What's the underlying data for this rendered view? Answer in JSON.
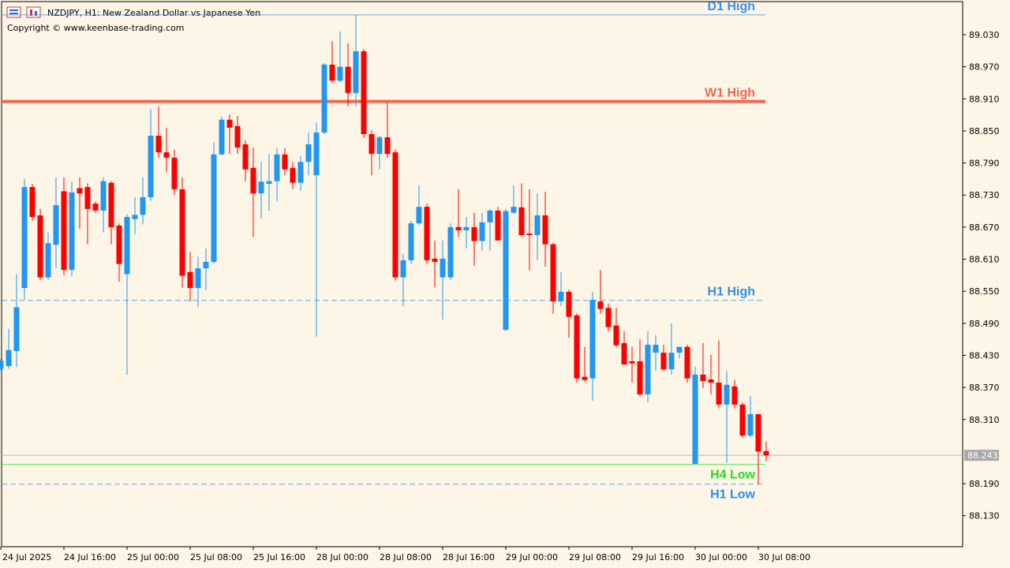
{
  "chart_data": {
    "type": "candlestick",
    "title": "NZDJPY, H1:  New Zealand Dollar vs Japanese Yen",
    "subtitle": "Copyright © www.keenbase-trading.com",
    "up_color": "#2196f3",
    "down_color": "#ff0000",
    "categories": [
      "24 Jul 2025",
      null,
      null,
      null,
      null,
      null,
      null,
      null,
      "24 Jul 16:00",
      null,
      null,
      null,
      null,
      null,
      null,
      null,
      "25 Jul 00:00",
      null,
      null,
      null,
      null,
      null,
      null,
      null,
      "25 Jul 08:00",
      null,
      null,
      null,
      null,
      null,
      null,
      null,
      "25 Jul 16:00",
      null,
      null,
      null,
      null,
      null,
      null,
      null,
      "28 Jul 00:00",
      null,
      null,
      null,
      null,
      null,
      null,
      null,
      "28 Jul 08:00",
      null,
      null,
      null,
      null,
      null,
      null,
      null,
      "28 Jul 16:00",
      null,
      null,
      null,
      null,
      null,
      null,
      null,
      "29 Jul 00:00",
      null,
      null,
      null,
      null,
      null,
      null,
      null,
      "29 Jul 08:00",
      null,
      null,
      null,
      null,
      null,
      null,
      null,
      "29 Jul 16:00",
      null,
      null,
      null,
      null,
      null,
      null,
      null,
      "30 Jul 00:00",
      null,
      null,
      null,
      null,
      null,
      null,
      null,
      "30 Jul 08:00",
      null
    ],
    "open": [
      88.405,
      88.41,
      88.438,
      88.556,
      88.745,
      88.692,
      88.576,
      88.637,
      88.737,
      88.59,
      88.743,
      88.745,
      88.714,
      88.701,
      88.753,
      88.673,
      88.582,
      88.685,
      88.693,
      88.726,
      88.841,
      88.81,
      88.8,
      88.741,
      88.586,
      88.556,
      88.593,
      88.605,
      88.806,
      88.871,
      88.859,
      88.825,
      88.781,
      88.733,
      88.751,
      88.756,
      88.806,
      88.781,
      88.753,
      88.792,
      88.767,
      88.847,
      88.974,
      88.944,
      88.97,
      88.921,
      88.999,
      88.844,
      88.807,
      88.838,
      88.81,
      88.576,
      88.608,
      88.677,
      88.708,
      88.611,
      88.576,
      88.576,
      88.67,
      88.664,
      88.67,
      88.644,
      88.679,
      88.701,
      88.478,
      88.697,
      88.707,
      88.658,
      88.655,
      88.692,
      88.638,
      88.531,
      88.549,
      88.505,
      88.39,
      88.387,
      88.531,
      88.519,
      88.486,
      88.453,
      88.419,
      88.419,
      88.357,
      88.435,
      88.435,
      88.404,
      88.435,
      88.446,
      88.227,
      88.394,
      88.385,
      88.379,
      88.338,
      88.372,
      88.338,
      88.28,
      88.32,
      88.251
    ],
    "high": [
      88.423,
      88.48,
      88.582,
      88.76,
      88.751,
      88.704,
      88.66,
      88.763,
      88.763,
      88.755,
      88.763,
      88.752,
      88.718,
      88.763,
      88.756,
      88.677,
      88.694,
      88.726,
      88.763,
      88.891,
      88.896,
      88.856,
      88.815,
      88.763,
      88.623,
      88.615,
      88.63,
      88.829,
      88.877,
      88.881,
      88.878,
      88.832,
      88.819,
      88.792,
      88.807,
      88.818,
      88.818,
      88.792,
      88.803,
      88.847,
      88.866,
      88.977,
      89.018,
      89.036,
      89.014,
      89.067,
      89.003,
      88.851,
      88.841,
      88.903,
      88.815,
      88.62,
      88.682,
      88.748,
      88.714,
      88.645,
      88.645,
      88.677,
      88.741,
      88.689,
      88.697,
      88.697,
      88.704,
      88.708,
      88.704,
      88.748,
      88.752,
      88.741,
      88.733,
      88.736,
      88.641,
      88.586,
      88.553,
      88.509,
      88.446,
      88.549,
      88.59,
      88.527,
      88.519,
      88.475,
      88.446,
      88.46,
      88.475,
      88.468,
      88.45,
      88.49,
      88.446,
      88.45,
      88.409,
      88.453,
      88.431,
      88.458,
      88.401,
      88.384,
      88.342,
      88.354,
      88.32,
      88.269
    ],
    "low": [
      88.402,
      88.405,
      88.408,
      88.534,
      88.682,
      88.571,
      88.571,
      88.593,
      88.58,
      88.578,
      88.667,
      88.638,
      88.697,
      88.66,
      88.638,
      88.568,
      88.394,
      88.657,
      88.675,
      88.719,
      88.8,
      88.773,
      88.73,
      88.557,
      88.531,
      88.52,
      88.552,
      88.601,
      88.804,
      88.807,
      88.807,
      88.755,
      88.652,
      88.686,
      88.7,
      88.719,
      88.767,
      88.741,
      88.738,
      88.767,
      88.465,
      88.844,
      88.94,
      88.94,
      88.896,
      88.896,
      88.837,
      88.767,
      88.778,
      88.8,
      88.57,
      88.522,
      88.601,
      88.674,
      88.601,
      88.557,
      88.497,
      88.571,
      88.652,
      88.63,
      88.598,
      88.626,
      88.626,
      88.645,
      88.475,
      88.694,
      88.652,
      88.589,
      88.608,
      88.596,
      88.508,
      88.522,
      88.463,
      88.379,
      88.381,
      88.345,
      88.508,
      88.475,
      88.446,
      88.413,
      88.379,
      88.354,
      88.342,
      88.401,
      88.401,
      88.394,
      88.424,
      88.379,
      88.226,
      88.369,
      88.357,
      88.331,
      88.229,
      88.331,
      88.276,
      88.276,
      88.189,
      88.232
    ],
    "close": [
      88.42,
      88.44,
      88.52,
      88.745,
      88.689,
      88.576,
      88.64,
      88.711,
      88.59,
      88.735,
      88.733,
      88.704,
      88.701,
      88.756,
      88.67,
      88.601,
      88.689,
      88.693,
      88.726,
      88.841,
      88.81,
      88.8,
      88.741,
      88.579,
      88.556,
      88.593,
      88.605,
      88.806,
      88.871,
      88.856,
      88.819,
      88.778,
      88.733,
      88.755,
      88.756,
      88.806,
      88.778,
      88.753,
      88.792,
      88.825,
      88.847,
      88.974,
      88.944,
      88.97,
      88.921,
      88.999,
      88.844,
      88.807,
      88.838,
      88.807,
      88.576,
      88.608,
      88.677,
      88.708,
      88.608,
      88.605,
      88.611,
      88.67,
      88.664,
      88.67,
      88.644,
      88.679,
      88.701,
      88.645,
      88.7,
      88.708,
      88.655,
      88.655,
      88.692,
      88.638,
      88.531,
      88.549,
      88.502,
      88.387,
      88.384,
      88.534,
      88.517,
      88.483,
      88.449,
      88.413,
      88.415,
      88.357,
      88.45,
      88.45,
      88.404,
      88.435,
      88.446,
      88.387,
      88.394,
      88.382,
      88.379,
      88.338,
      88.375,
      88.338,
      88.28,
      88.32,
      88.25,
      88.243
    ],
    "levels": [
      {
        "name": "D1 High",
        "value": 89.067,
        "color": "#3a8ee6",
        "style": "solid"
      },
      {
        "name": "W1 High",
        "value": 88.905,
        "color": "#f4664f",
        "style": "thick"
      },
      {
        "name": "H1 High",
        "value": 88.533,
        "color": "#2f8fe5",
        "style": "dashed"
      },
      {
        "name": "H4 Low",
        "value": 88.226,
        "color": "#22dd22",
        "style": "solid"
      },
      {
        "name": "H1 Low",
        "value": 88.189,
        "color": "#2f8fe5",
        "style": "dashed"
      }
    ],
    "last_price": 88.243,
    "ylim": [
      88.072,
      89.092
    ],
    "yticks": [
      {
        "value": 89.03,
        "label": "89.030"
      },
      {
        "value": 88.97,
        "label": "88.970"
      },
      {
        "value": 88.91,
        "label": "88.910"
      },
      {
        "value": 88.85,
        "label": "88.850"
      },
      {
        "value": 88.79,
        "label": "88.790"
      },
      {
        "value": 88.73,
        "label": "88.730"
      },
      {
        "value": 88.67,
        "label": "88.670"
      },
      {
        "value": 88.61,
        "label": "88.610"
      },
      {
        "value": 88.55,
        "label": "88.550"
      },
      {
        "value": 88.49,
        "label": "88.490"
      },
      {
        "value": 88.43,
        "label": "88.430"
      },
      {
        "value": 88.37,
        "label": "88.370"
      },
      {
        "value": 88.31,
        "label": "88.310"
      },
      {
        "value": 88.19,
        "label": "88.190"
      },
      {
        "value": 88.13,
        "label": "88.130"
      }
    ]
  }
}
